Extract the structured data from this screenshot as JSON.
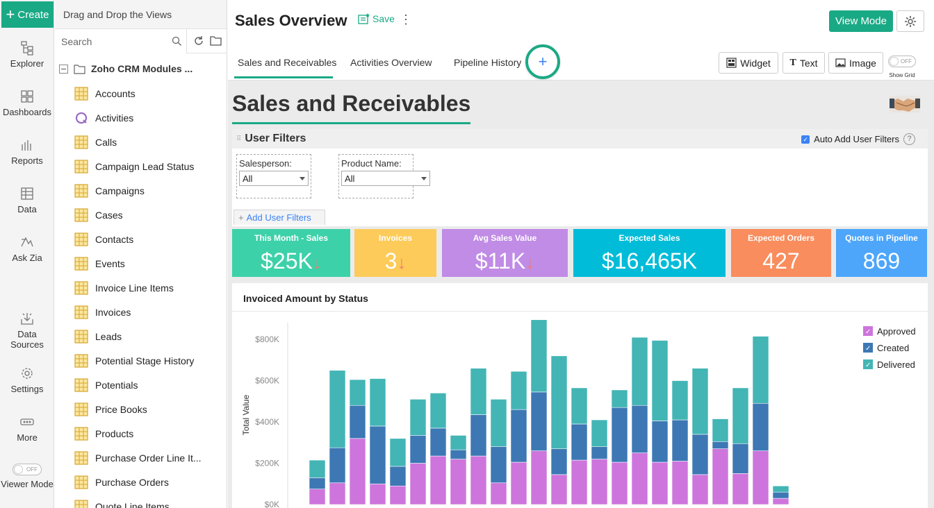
{
  "rail": {
    "create_label": "Create",
    "items": [
      {
        "label": "Explorer"
      },
      {
        "label": "Dashboards"
      },
      {
        "label": "Reports"
      },
      {
        "label": "Data"
      },
      {
        "label": "Ask Zia"
      },
      {
        "label": "Data Sources"
      },
      {
        "label": "Settings"
      },
      {
        "label": "More"
      },
      {
        "label": "Viewer Mode",
        "toggle": "OFF"
      }
    ]
  },
  "explorer": {
    "header": "Drag and Drop the Views",
    "search_placeholder": "Search",
    "root_label": "Zoho CRM Modules ...",
    "modules": [
      {
        "name": "Accounts",
        "icon": "table-icon"
      },
      {
        "name": "Activities",
        "icon": "query-icon"
      },
      {
        "name": "Calls",
        "icon": "table-icon"
      },
      {
        "name": "Campaign Lead Status",
        "icon": "table-icon"
      },
      {
        "name": "Campaigns",
        "icon": "table-icon"
      },
      {
        "name": "Cases",
        "icon": "table-icon"
      },
      {
        "name": "Contacts",
        "icon": "table-icon"
      },
      {
        "name": "Events",
        "icon": "table-icon"
      },
      {
        "name": "Invoice Line Items",
        "icon": "table-icon"
      },
      {
        "name": "Invoices",
        "icon": "table-icon"
      },
      {
        "name": "Leads",
        "icon": "table-icon"
      },
      {
        "name": "Potential Stage History",
        "icon": "table-icon"
      },
      {
        "name": "Potentials",
        "icon": "table-icon"
      },
      {
        "name": "Price Books",
        "icon": "table-icon"
      },
      {
        "name": "Products",
        "icon": "table-icon"
      },
      {
        "name": "Purchase Order Line It...",
        "icon": "table-icon"
      },
      {
        "name": "Purchase Orders",
        "icon": "table-icon"
      },
      {
        "name": "Quote Line Items",
        "icon": "table-icon"
      }
    ]
  },
  "header": {
    "title": "Sales Overview",
    "save_label": "Save",
    "view_mode_label": "View Mode",
    "tabs": [
      {
        "label": "Sales and Receivables",
        "active": true
      },
      {
        "label": "Activities Overview"
      },
      {
        "label": "Pipeline History"
      }
    ],
    "add_tab_label": "+",
    "tools": {
      "widget": "Widget",
      "text": "Text",
      "image": "Image"
    },
    "show_grid": {
      "toggle": "OFF",
      "label": "Show Grid"
    }
  },
  "dashboard": {
    "title": "Sales and Receivables",
    "user_filters": {
      "title": "User Filters",
      "auto_add_label": "Auto Add User Filters",
      "auto_add_checked": true,
      "filters": [
        {
          "label": "Salesperson:",
          "value": "All"
        },
        {
          "label": "Product Name:",
          "value": "All"
        }
      ],
      "add_label": "Add User Filters"
    },
    "kpis": [
      {
        "label": "This Month - Sales",
        "value": "$25K",
        "trend": "down",
        "color": "#3dd1a9"
      },
      {
        "label": "Invoices",
        "value": "3",
        "trend": "down",
        "color": "#fdcb5a"
      },
      {
        "label": "Avg Sales Value",
        "value": "$11K",
        "trend": "down",
        "color": "#c08ce6"
      },
      {
        "label": "Expected Sales",
        "value": "$16,465K",
        "trend": null,
        "color": "#00bcd8"
      },
      {
        "label": "Expected Orders",
        "value": "427",
        "trend": null,
        "color": "#f98d5d"
      },
      {
        "label": "Quotes in Pipeline",
        "value": "869",
        "trend": null,
        "color": "#4da6fa"
      }
    ]
  },
  "colors": {
    "accent": "#1aa985",
    "link": "#3b82f6"
  },
  "chart_data": {
    "type": "bar",
    "stacked": true,
    "title": "Invoiced Amount by Status",
    "ylabel": "Total Value",
    "xlabel": "",
    "ylim": [
      0,
      900000
    ],
    "yticks": [
      "$0K",
      "$200K",
      "$400K",
      "$600K",
      "$800K"
    ],
    "legend_position": "top-right",
    "grid": false,
    "series": [
      {
        "name": "Approved",
        "color": "#cd75dc",
        "values": [
          75000,
          105000,
          320000,
          100000,
          90000,
          200000,
          235000,
          220000,
          235000,
          105000,
          205000,
          260000,
          145000,
          215000,
          220000,
          205000,
          250000,
          205000,
          210000,
          145000,
          270000,
          150000,
          260000,
          30000
        ]
      },
      {
        "name": "Created",
        "color": "#3d78b4",
        "values": [
          55000,
          170000,
          160000,
          280000,
          95000,
          135000,
          135000,
          45000,
          200000,
          175000,
          255000,
          285000,
          125000,
          175000,
          60000,
          265000,
          230000,
          200000,
          200000,
          195000,
          35000,
          145000,
          230000,
          30000
        ]
      },
      {
        "name": "Delivered",
        "color": "#43b5b5",
        "values": [
          85000,
          375000,
          125000,
          230000,
          135000,
          175000,
          170000,
          70000,
          225000,
          230000,
          185000,
          350000,
          450000,
          175000,
          130000,
          85000,
          330000,
          390000,
          190000,
          320000,
          110000,
          270000,
          325000,
          30000
        ]
      }
    ]
  }
}
